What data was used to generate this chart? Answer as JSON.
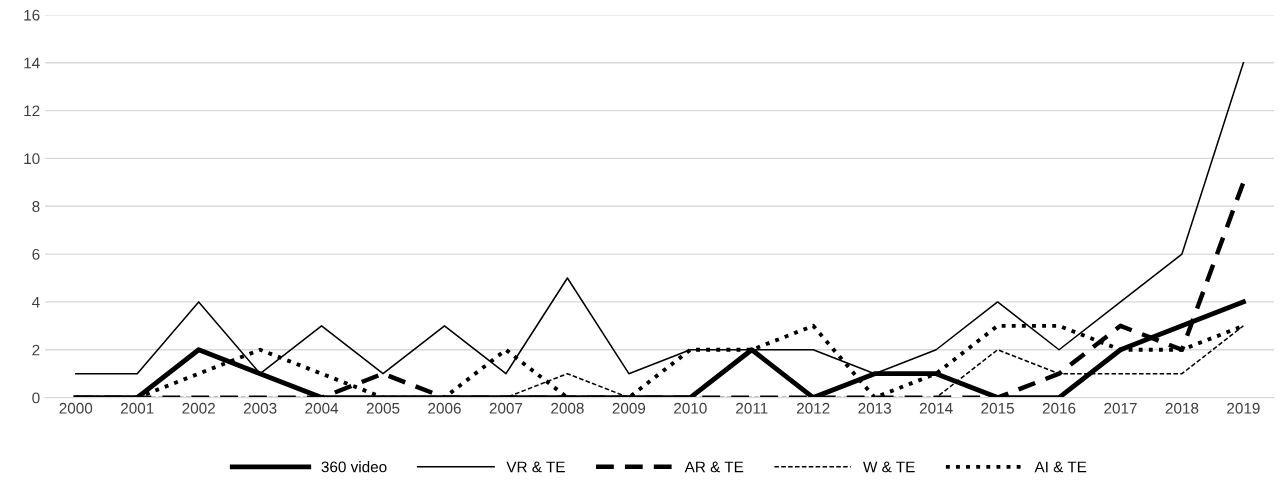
{
  "chart_data": {
    "type": "line",
    "categories": [
      "2000",
      "2001",
      "2002",
      "2003",
      "2004",
      "2005",
      "2006",
      "2007",
      "2008",
      "2009",
      "2010",
      "2011",
      "2012",
      "2013",
      "2014",
      "2015",
      "2016",
      "2017",
      "2018",
      "2019"
    ],
    "series": [
      {
        "name": "360 video",
        "color": "#000000",
        "line_style": "solid",
        "values": [
          0,
          0,
          2,
          1,
          0,
          0,
          0,
          0,
          0,
          0,
          0,
          2,
          0,
          1,
          1,
          0,
          0,
          2,
          3,
          4
        ]
      },
      {
        "name": "VR & TE",
        "color": "#000000",
        "line_style": "solid",
        "values": [
          1,
          1,
          4,
          1,
          3,
          1,
          3,
          1,
          5,
          1,
          2,
          2,
          2,
          1,
          2,
          4,
          2,
          4,
          6,
          14
        ]
      },
      {
        "name": "AR & TE",
        "color": "#000000",
        "line_style": "dashed",
        "values": [
          0,
          0,
          0,
          0,
          0,
          1,
          0,
          0,
          0,
          0,
          0,
          0,
          0,
          0,
          0,
          0,
          1,
          3,
          2,
          9
        ]
      },
      {
        "name": "W & TE",
        "color": "#000000",
        "line_style": "dashed",
        "values": [
          0,
          0,
          0,
          0,
          0,
          0,
          0,
          0,
          1,
          0,
          0,
          0,
          0,
          0,
          0,
          2,
          1,
          1,
          1,
          3
        ]
      },
      {
        "name": "AI & TE",
        "color": "#000000",
        "line_style": "dotted",
        "values": [
          0,
          0,
          1,
          2,
          1,
          0,
          0,
          2,
          0,
          0,
          2,
          2,
          3,
          0,
          1,
          3,
          3,
          2,
          2,
          3
        ]
      }
    ],
    "ylim": [
      0,
      16
    ],
    "yticks": [
      0,
      2,
      4,
      6,
      8,
      10,
      12,
      14,
      16
    ],
    "grid": "y",
    "legend": "bottom",
    "marker": "none"
  }
}
